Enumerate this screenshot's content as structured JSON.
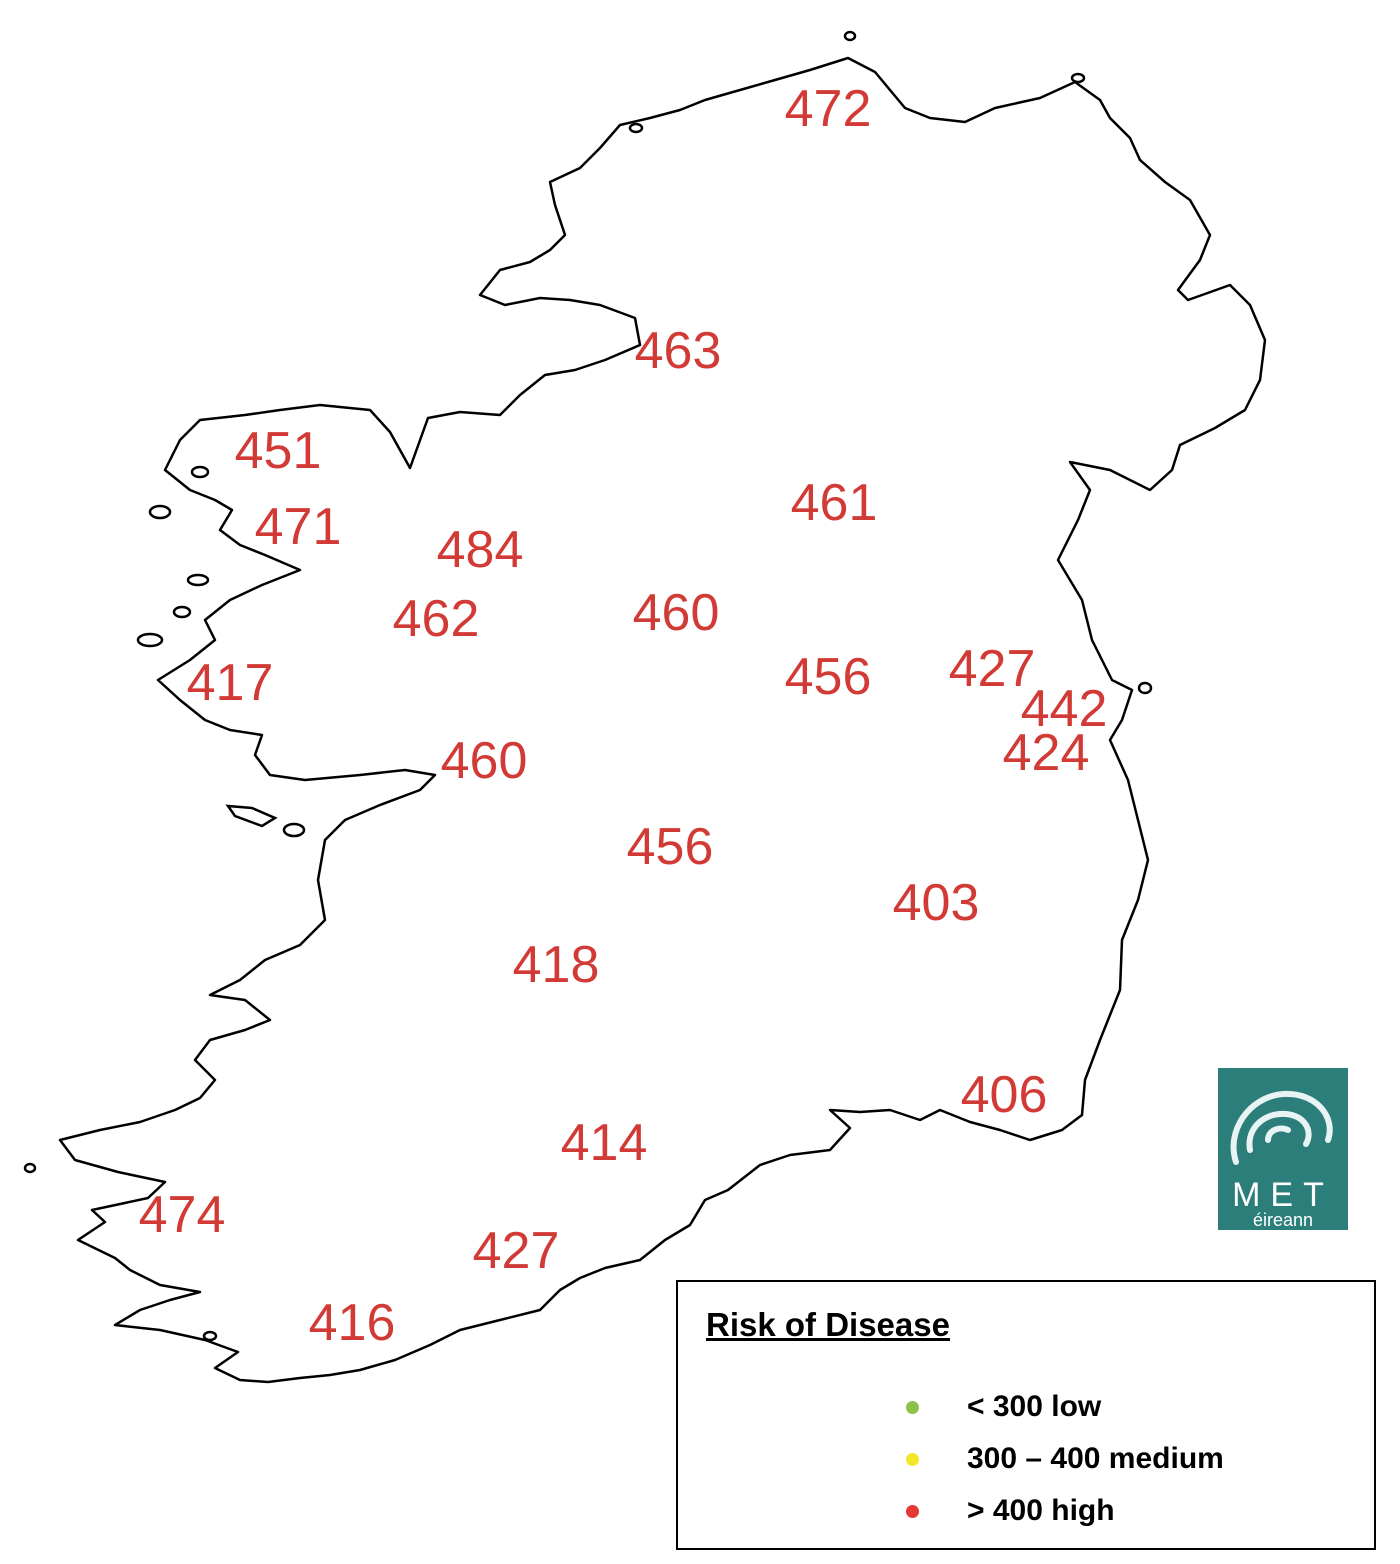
{
  "map": {
    "stations": [
      {
        "value": "472"
      },
      {
        "value": "463"
      },
      {
        "value": "451"
      },
      {
        "value": "471"
      },
      {
        "value": "484"
      },
      {
        "value": "461"
      },
      {
        "value": "462"
      },
      {
        "value": "460"
      },
      {
        "value": "417"
      },
      {
        "value": "456"
      },
      {
        "value": "427"
      },
      {
        "value": "442"
      },
      {
        "value": "424"
      },
      {
        "value": "460"
      },
      {
        "value": "456"
      },
      {
        "value": "403"
      },
      {
        "value": "418"
      },
      {
        "value": "406"
      },
      {
        "value": "414"
      },
      {
        "value": "474"
      },
      {
        "value": "427"
      },
      {
        "value": "416"
      }
    ],
    "value_color": "#d23a35",
    "outline_color": "#000000"
  },
  "legend": {
    "title": "Risk of Disease",
    "items": [
      {
        "label": "< 300 low",
        "color": "#8bc34a"
      },
      {
        "label": "300 – 400 medium",
        "color": "#f2e62a"
      },
      {
        "label": "> 400 high",
        "color": "#e53935"
      }
    ]
  },
  "logo": {
    "brand": "MET",
    "sub": "éireann",
    "color": "#2b7e7a",
    "icon": "swirl-icon"
  }
}
